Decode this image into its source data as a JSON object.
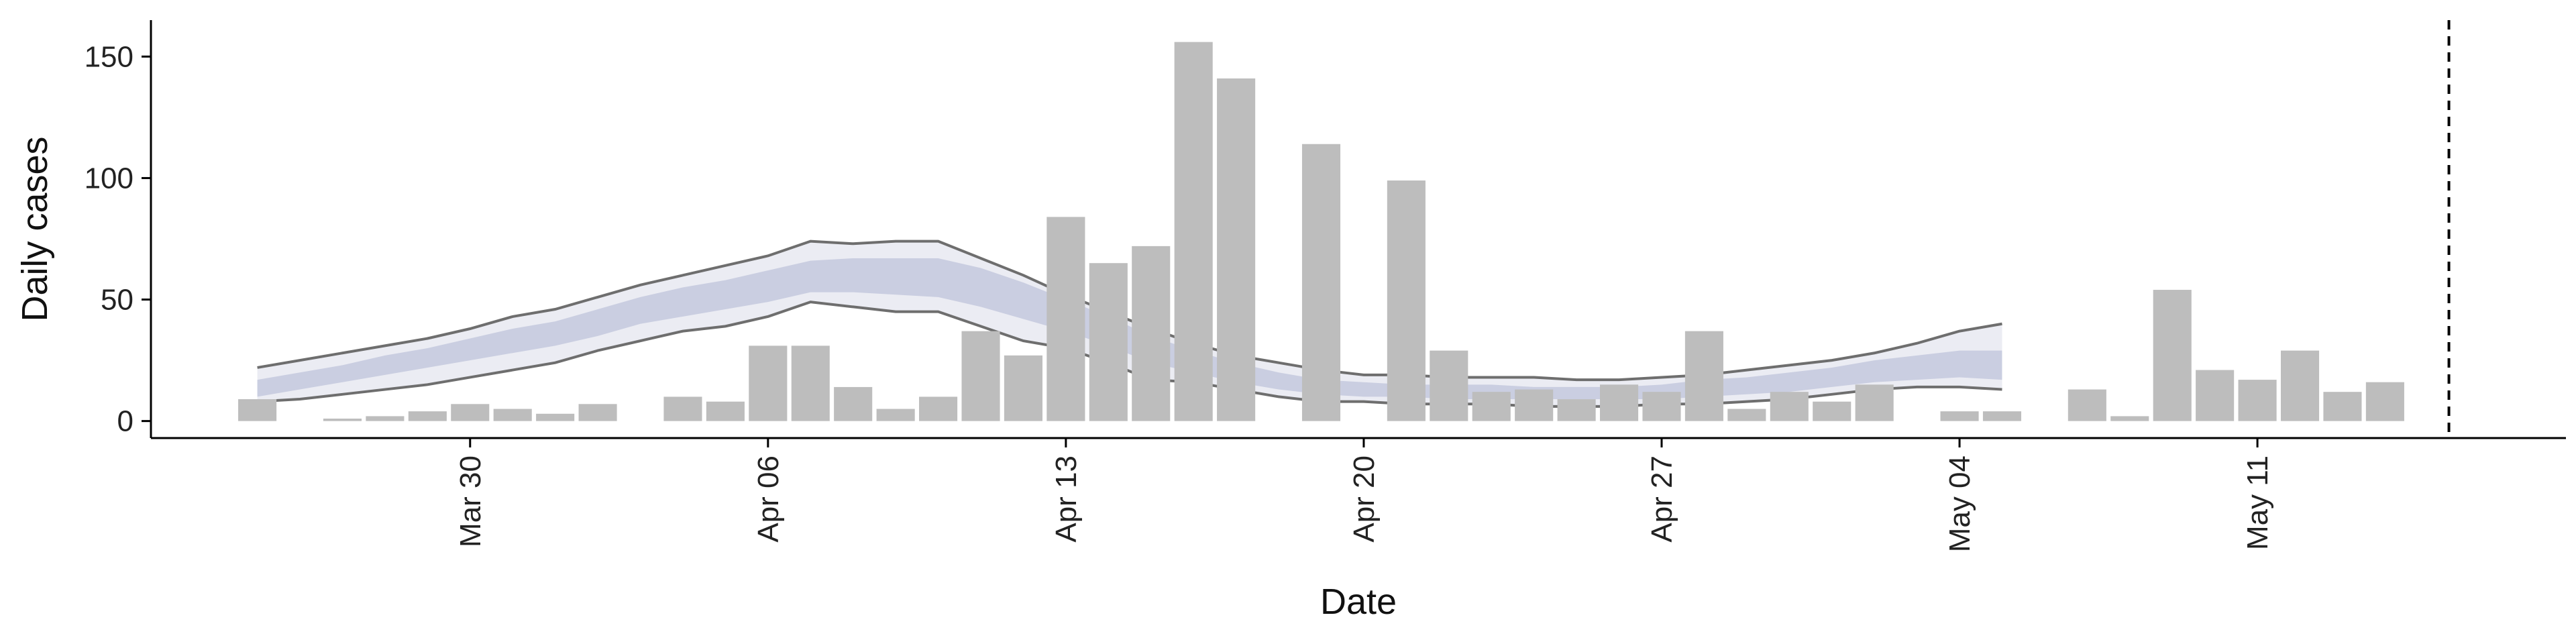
{
  "chart_data": {
    "type": "bar",
    "xlabel": "Date",
    "ylabel": "Daily cases",
    "ylim": [
      -7,
      165
    ],
    "y_ticks": [
      0,
      50,
      100,
      150
    ],
    "x_tick_labels": [
      "Mar 30",
      "Apr 06",
      "Apr 13",
      "Apr 20",
      "Apr 27",
      "May 04",
      "May 11"
    ],
    "x_tick_dates": [
      "2020-03-30",
      "2020-04-06",
      "2020-04-13",
      "2020-04-20",
      "2020-04-27",
      "2020-05-04",
      "2020-05-11"
    ],
    "x_range": [
      "2020-03-22T12:00",
      "2020-05-18T06:00"
    ],
    "grid": false,
    "colors": {
      "bars": "#bdbdbd",
      "outer_band": "#e8e9f1",
      "inner_band": "#c6cbdf",
      "band_edge": "#6e6e6e",
      "vline": "#000000",
      "axis": "#000000"
    },
    "daily_cases": {
      "dates": [
        "2020-03-25",
        "2020-03-26",
        "2020-03-27",
        "2020-03-28",
        "2020-03-29",
        "2020-03-30",
        "2020-03-31",
        "2020-04-01",
        "2020-04-02",
        "2020-04-03",
        "2020-04-04",
        "2020-04-05",
        "2020-04-06",
        "2020-04-07",
        "2020-04-08",
        "2020-04-09",
        "2020-04-10",
        "2020-04-11",
        "2020-04-12",
        "2020-04-13",
        "2020-04-14",
        "2020-04-15",
        "2020-04-16",
        "2020-04-17",
        "2020-04-18",
        "2020-04-19",
        "2020-04-20",
        "2020-04-21",
        "2020-04-22",
        "2020-04-23",
        "2020-04-24",
        "2020-04-25",
        "2020-04-26",
        "2020-04-27",
        "2020-04-28",
        "2020-04-29",
        "2020-04-30",
        "2020-05-01",
        "2020-05-02",
        "2020-05-03",
        "2020-05-04",
        "2020-05-05",
        "2020-05-06",
        "2020-05-07",
        "2020-05-08",
        "2020-05-09",
        "2020-05-10",
        "2020-05-11",
        "2020-05-12",
        "2020-05-13",
        "2020-05-14",
        "2020-05-15"
      ],
      "values": [
        9,
        0,
        1,
        2,
        4,
        7,
        5,
        3,
        7,
        0,
        10,
        8,
        31,
        31,
        14,
        5,
        10,
        37,
        27,
        84,
        65,
        72,
        156,
        141,
        0,
        114,
        0,
        99,
        29,
        12,
        13,
        9,
        15,
        12,
        37,
        5,
        12,
        8,
        15,
        0,
        4,
        4,
        0,
        13,
        2,
        54,
        21,
        17,
        29,
        12,
        16,
        0
      ]
    },
    "estimate": {
      "dates": [
        "2020-03-25",
        "2020-03-26",
        "2020-03-27",
        "2020-03-28",
        "2020-03-29",
        "2020-03-30",
        "2020-03-31",
        "2020-04-01",
        "2020-04-02",
        "2020-04-03",
        "2020-04-04",
        "2020-04-05",
        "2020-04-06",
        "2020-04-07",
        "2020-04-08",
        "2020-04-09",
        "2020-04-10",
        "2020-04-11",
        "2020-04-12",
        "2020-04-13",
        "2020-04-14",
        "2020-04-15",
        "2020-04-16",
        "2020-04-17",
        "2020-04-18",
        "2020-04-19",
        "2020-04-20",
        "2020-04-21",
        "2020-04-22",
        "2020-04-23",
        "2020-04-24",
        "2020-04-25",
        "2020-04-26",
        "2020-04-27",
        "2020-04-28",
        "2020-04-29",
        "2020-04-30",
        "2020-05-01",
        "2020-05-02",
        "2020-05-03",
        "2020-05-04",
        "2020-05-05",
        "2020-05-06",
        "2020-05-07",
        "2020-05-08",
        "2020-05-09",
        "2020-05-10",
        "2020-05-11",
        "2020-05-12",
        "2020-05-13",
        "2020-05-14",
        "2020-05-15",
        "2020-05-16",
        "2020-05-17",
        "2020-05-18",
        "2020-05-19",
        "2020-05-20",
        "2020-05-21",
        "2020-05-22"
      ],
      "lower_90": [
        8,
        9,
        11,
        13,
        15,
        18,
        21,
        24,
        29,
        33,
        37,
        39,
        43,
        49,
        47,
        45,
        45,
        39,
        33,
        30,
        24,
        17,
        16,
        13,
        10,
        8,
        8,
        7,
        7,
        7,
        6,
        6,
        6,
        7,
        7,
        8,
        9,
        11,
        13,
        14,
        14,
        13,
        null,
        null,
        null,
        null,
        null,
        null,
        null,
        null,
        null,
        null,
        null,
        null,
        null,
        null,
        null,
        null,
        null
      ],
      "lower_50": [
        10,
        13,
        16,
        19,
        22,
        25,
        28,
        31,
        35,
        40,
        43,
        46,
        49,
        53,
        53,
        52,
        51,
        47,
        42,
        37,
        31,
        24,
        20,
        16,
        13,
        11,
        10,
        10,
        9,
        9,
        9,
        9,
        9,
        9,
        10,
        11,
        12,
        14,
        16,
        17,
        18,
        17,
        null,
        null,
        null,
        null,
        null,
        null,
        null,
        null,
        null,
        null,
        null,
        null,
        null,
        null,
        null,
        null,
        null
      ],
      "upper_50": [
        17,
        20,
        23,
        27,
        30,
        34,
        38,
        41,
        46,
        51,
        55,
        58,
        62,
        66,
        67,
        67,
        67,
        63,
        57,
        50,
        43,
        35,
        29,
        24,
        20,
        17,
        16,
        15,
        15,
        15,
        14,
        14,
        14,
        15,
        17,
        18,
        20,
        22,
        25,
        27,
        29,
        29,
        null,
        null,
        null,
        null,
        null,
        null,
        null,
        null,
        null,
        null,
        null,
        null,
        null,
        null,
        null,
        null,
        null
      ],
      "upper_90": [
        22,
        25,
        28,
        31,
        34,
        38,
        43,
        46,
        51,
        56,
        60,
        64,
        68,
        74,
        73,
        74,
        74,
        67,
        60,
        52,
        45,
        38,
        32,
        27,
        24,
        21,
        19,
        19,
        18,
        18,
        18,
        17,
        17,
        18,
        19,
        21,
        23,
        25,
        28,
        32,
        37,
        40,
        null,
        null,
        null,
        null,
        null,
        null,
        null,
        null,
        null,
        null,
        null,
        null,
        null,
        null,
        null,
        null,
        null
      ]
    },
    "forecast_line_date": "2020-05-15T12:00"
  }
}
